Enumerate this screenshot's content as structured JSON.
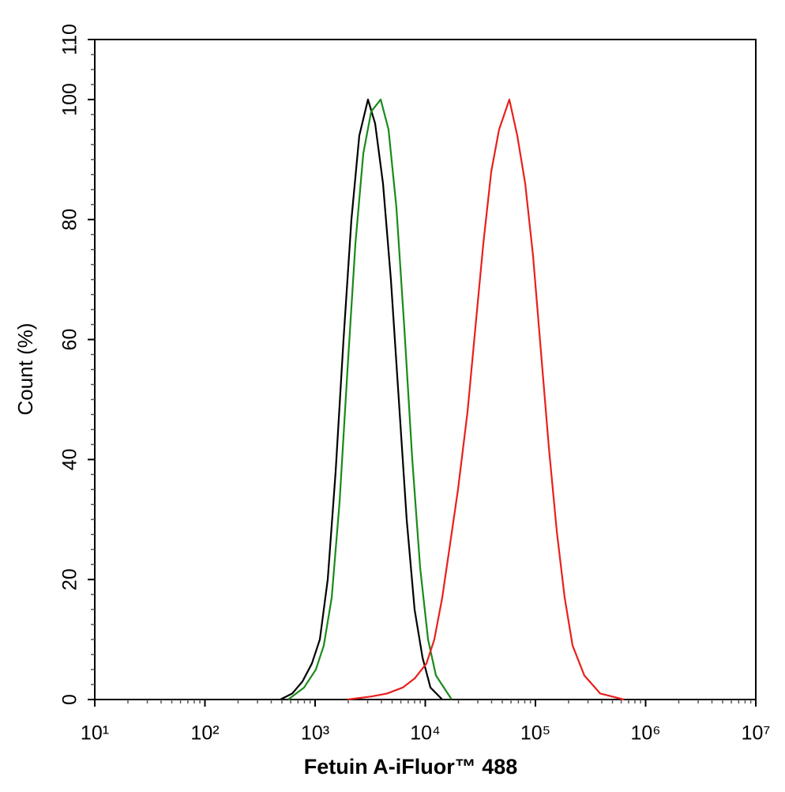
{
  "chart_data": {
    "type": "line",
    "x_label": "Fetuin A-iFluor™ 488",
    "y_label": "Count  (%)",
    "x_scale": "log",
    "xlim": [
      10,
      10000000
    ],
    "xticks": [
      {
        "value": 10,
        "label": "10¹"
      },
      {
        "value": 100,
        "label": "10²"
      },
      {
        "value": 1000,
        "label": "10³"
      },
      {
        "value": 10000,
        "label": "10⁴"
      },
      {
        "value": 100000,
        "label": "10⁵"
      },
      {
        "value": 1000000,
        "label": "10⁶"
      },
      {
        "value": 10000000,
        "label": "10⁷"
      }
    ],
    "ylim": [
      0,
      110
    ],
    "yticks": [
      0,
      20,
      40,
      60,
      80,
      100,
      110
    ],
    "grid": false,
    "series": [
      {
        "color": "#000000",
        "x": [
          484,
          620,
          767,
          935,
          1104,
          1302,
          1536,
          1811,
          2136,
          2519,
          3020,
          3506,
          4134,
          4875,
          5750,
          6780,
          8000,
          9440,
          11140,
          14260
        ],
        "values": [
          0,
          1,
          3,
          6,
          10,
          20,
          38,
          60,
          80,
          94,
          100,
          96,
          86,
          70,
          50,
          30,
          15,
          7,
          2,
          0
        ]
      },
      {
        "color": "#1a8a1a",
        "x": [
          570,
          794,
          1016,
          1199,
          1415,
          1669,
          1968,
          2322,
          2738,
          3230,
          3940,
          4640,
          5470,
          6450,
          7620,
          8980,
          10600,
          12500,
          17380
        ],
        "values": [
          0,
          2,
          5,
          9,
          17,
          33,
          55,
          76,
          91,
          98,
          100,
          95,
          82,
          62,
          40,
          22,
          10,
          4,
          0
        ]
      },
      {
        "color": "#e8201c",
        "x": [
          1968,
          3230,
          4490,
          6250,
          8000,
          10250,
          12080,
          14260,
          16820,
          19820,
          24200,
          28510,
          33650,
          39710,
          46770,
          57940,
          68390,
          80720,
          95060,
          112200,
          132400,
          156300,
          184100,
          217300,
          278000,
          387000,
          635000
        ],
        "values": [
          0,
          0.5,
          1,
          2,
          3.5,
          6,
          10,
          17,
          26,
          35,
          48,
          62,
          76,
          88,
          95,
          100,
          94,
          86,
          74,
          58,
          42,
          28,
          17,
          9,
          4,
          1,
          0
        ]
      }
    ]
  }
}
